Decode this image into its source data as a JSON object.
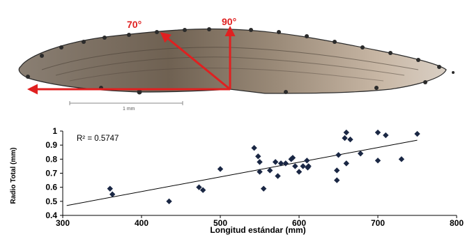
{
  "photo": {
    "angle_a_label": "70°",
    "angle_b_label": "90°",
    "scale_bar_label": "1 mm",
    "arrow_color": "#e02020"
  },
  "chart_data": {
    "type": "scatter",
    "title": "",
    "xlabel": "Longitud estándar (mm)",
    "ylabel": "Radio Total (mm)",
    "xlim": [
      300,
      800
    ],
    "ylim": [
      0.4,
      1.0
    ],
    "x_ticks": [
      "300",
      "400",
      "500",
      "600",
      "700",
      "800"
    ],
    "y_ticks": [
      "0.4",
      "0.5",
      "0.6",
      "0.7",
      "0.8",
      "0.9",
      "1"
    ],
    "r2_label": "R² = 0.5747",
    "trendline": {
      "x": [
        305,
        750
      ],
      "y": [
        0.47,
        0.935
      ]
    },
    "grid": false,
    "marker_color": "#1a2744",
    "points": [
      {
        "x": 360,
        "y": 0.59
      },
      {
        "x": 363,
        "y": 0.55
      },
      {
        "x": 435,
        "y": 0.5
      },
      {
        "x": 473,
        "y": 0.6
      },
      {
        "x": 478,
        "y": 0.58
      },
      {
        "x": 500,
        "y": 0.73
      },
      {
        "x": 543,
        "y": 0.88
      },
      {
        "x": 548,
        "y": 0.82
      },
      {
        "x": 550,
        "y": 0.78
      },
      {
        "x": 550,
        "y": 0.71
      },
      {
        "x": 555,
        "y": 0.59
      },
      {
        "x": 563,
        "y": 0.72
      },
      {
        "x": 570,
        "y": 0.78
      },
      {
        "x": 573,
        "y": 0.68
      },
      {
        "x": 577,
        "y": 0.77
      },
      {
        "x": 583,
        "y": 0.77
      },
      {
        "x": 590,
        "y": 0.8
      },
      {
        "x": 592,
        "y": 0.81
      },
      {
        "x": 595,
        "y": 0.75
      },
      {
        "x": 600,
        "y": 0.71
      },
      {
        "x": 605,
        "y": 0.75
      },
      {
        "x": 610,
        "y": 0.79
      },
      {
        "x": 611,
        "y": 0.74
      },
      {
        "x": 612,
        "y": 0.75
      },
      {
        "x": 648,
        "y": 0.72
      },
      {
        "x": 648,
        "y": 0.65
      },
      {
        "x": 650,
        "y": 0.83
      },
      {
        "x": 658,
        "y": 0.95
      },
      {
        "x": 660,
        "y": 0.99
      },
      {
        "x": 660,
        "y": 0.77
      },
      {
        "x": 665,
        "y": 0.94
      },
      {
        "x": 678,
        "y": 0.84
      },
      {
        "x": 700,
        "y": 0.99
      },
      {
        "x": 700,
        "y": 0.79
      },
      {
        "x": 710,
        "y": 0.97
      },
      {
        "x": 730,
        "y": 0.8
      },
      {
        "x": 750,
        "y": 0.98
      }
    ]
  }
}
